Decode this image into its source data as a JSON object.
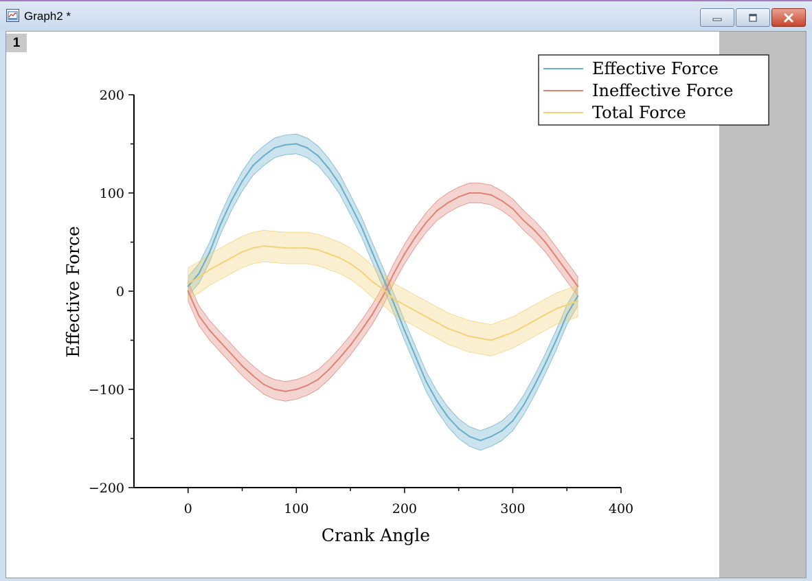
{
  "window": {
    "title": "Graph2 *",
    "layer_label": "1",
    "colors": {
      "titlebar": "#cfdff0",
      "close_button": "#c6452d",
      "side_panel": "#bfbfbf"
    }
  },
  "icons": [
    "graph-app-icon",
    "minimize-icon",
    "maximize-icon",
    "close-icon"
  ],
  "chart_data": {
    "type": "line",
    "xlabel": "Crank Angle",
    "ylabel": "Effective Force",
    "xlim": [
      -50,
      400
    ],
    "ylim": [
      -200,
      200
    ],
    "xticks": [
      0,
      100,
      200,
      300,
      400
    ],
    "xtick_labels": [
      "0",
      "100",
      "200",
      "300",
      "400"
    ],
    "yticks": [
      -200,
      -100,
      0,
      100,
      200
    ],
    "ytick_labels": [
      "−200",
      "−100",
      "0",
      "100",
      "200"
    ],
    "grid": false,
    "legend_position": "top-right",
    "x": [
      0,
      10,
      20,
      30,
      40,
      50,
      60,
      70,
      80,
      90,
      100,
      110,
      120,
      130,
      140,
      150,
      160,
      170,
      180,
      190,
      200,
      210,
      220,
      230,
      240,
      250,
      260,
      270,
      280,
      290,
      300,
      310,
      320,
      330,
      340,
      350,
      360
    ],
    "series": [
      {
        "name": "Effective Force",
        "color": "#6baec9",
        "band_halfwidth": 10,
        "values": [
          5,
          18,
          40,
          68,
          92,
          112,
          128,
          138,
          146,
          149,
          150,
          146,
          138,
          125,
          109,
          88,
          66,
          40,
          14,
          -12,
          -40,
          -66,
          -92,
          -112,
          -128,
          -140,
          -148,
          -152,
          -148,
          -142,
          -132,
          -116,
          -96,
          -74,
          -50,
          -24,
          -5
        ]
      },
      {
        "name": "Ineffective Force",
        "color": "#e08377",
        "band_halfwidth": 10,
        "values": [
          0,
          -25,
          -40,
          -52,
          -64,
          -76,
          -86,
          -95,
          -100,
          -102,
          -100,
          -96,
          -90,
          -80,
          -68,
          -55,
          -40,
          -24,
          -5,
          18,
          38,
          55,
          70,
          82,
          90,
          96,
          100,
          100,
          98,
          92,
          84,
          72,
          62,
          50,
          35,
          20,
          5
        ]
      },
      {
        "name": "Total Force",
        "color": "#f3d27a",
        "band_halfwidth": 16,
        "values": [
          8,
          14,
          22,
          28,
          34,
          40,
          44,
          46,
          45,
          44,
          44,
          44,
          42,
          38,
          34,
          28,
          20,
          10,
          2,
          -8,
          -14,
          -20,
          -26,
          -32,
          -38,
          -42,
          -46,
          -48,
          -50,
          -46,
          -42,
          -36,
          -30,
          -24,
          -18,
          -14,
          -10
        ]
      }
    ]
  }
}
